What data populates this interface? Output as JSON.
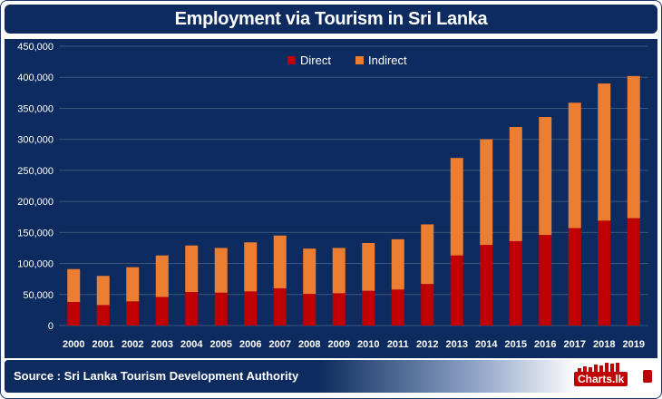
{
  "title": "Employment via Tourism in Sri Lanka",
  "source": "Source : Sri Lanka Tourism Development Authority",
  "logo_text": "Charts.lk",
  "colors": {
    "background": "#0d2b5e",
    "direct": "#c00000",
    "indirect": "#ed7d31",
    "grid": "#3b557f",
    "text": "#ffffff"
  },
  "chart_data": {
    "type": "bar",
    "stacked": true,
    "title": "Employment via Tourism in Sri Lanka",
    "xlabel": "",
    "ylabel": "",
    "ylim": [
      0,
      450000
    ],
    "yticks": [
      "0",
      "50,000",
      "100,000",
      "150,000",
      "200,000",
      "250,000",
      "300,000",
      "350,000",
      "400,000",
      "450,000"
    ],
    "grid": true,
    "legend_position": "top-center",
    "categories": [
      "2000",
      "2001",
      "2002",
      "2003",
      "2004",
      "2005",
      "2006",
      "2007",
      "2008",
      "2009",
      "2010",
      "2011",
      "2012",
      "2013",
      "2014",
      "2015",
      "2016",
      "2017",
      "2018",
      "2019"
    ],
    "series": [
      {
        "name": "Direct",
        "color": "#c00000",
        "values": [
          38000,
          33000,
          39000,
          46000,
          54000,
          53000,
          55000,
          60000,
          51000,
          52000,
          56000,
          58000,
          67000,
          113000,
          130000,
          136000,
          146000,
          157000,
          169000,
          173000
        ]
      },
      {
        "name": "Indirect",
        "color": "#ed7d31",
        "values": [
          53000,
          47000,
          55000,
          67000,
          75000,
          72000,
          79000,
          85000,
          73000,
          73000,
          77000,
          81000,
          96000,
          157000,
          170000,
          184000,
          190000,
          202000,
          221000,
          229000
        ]
      }
    ]
  }
}
